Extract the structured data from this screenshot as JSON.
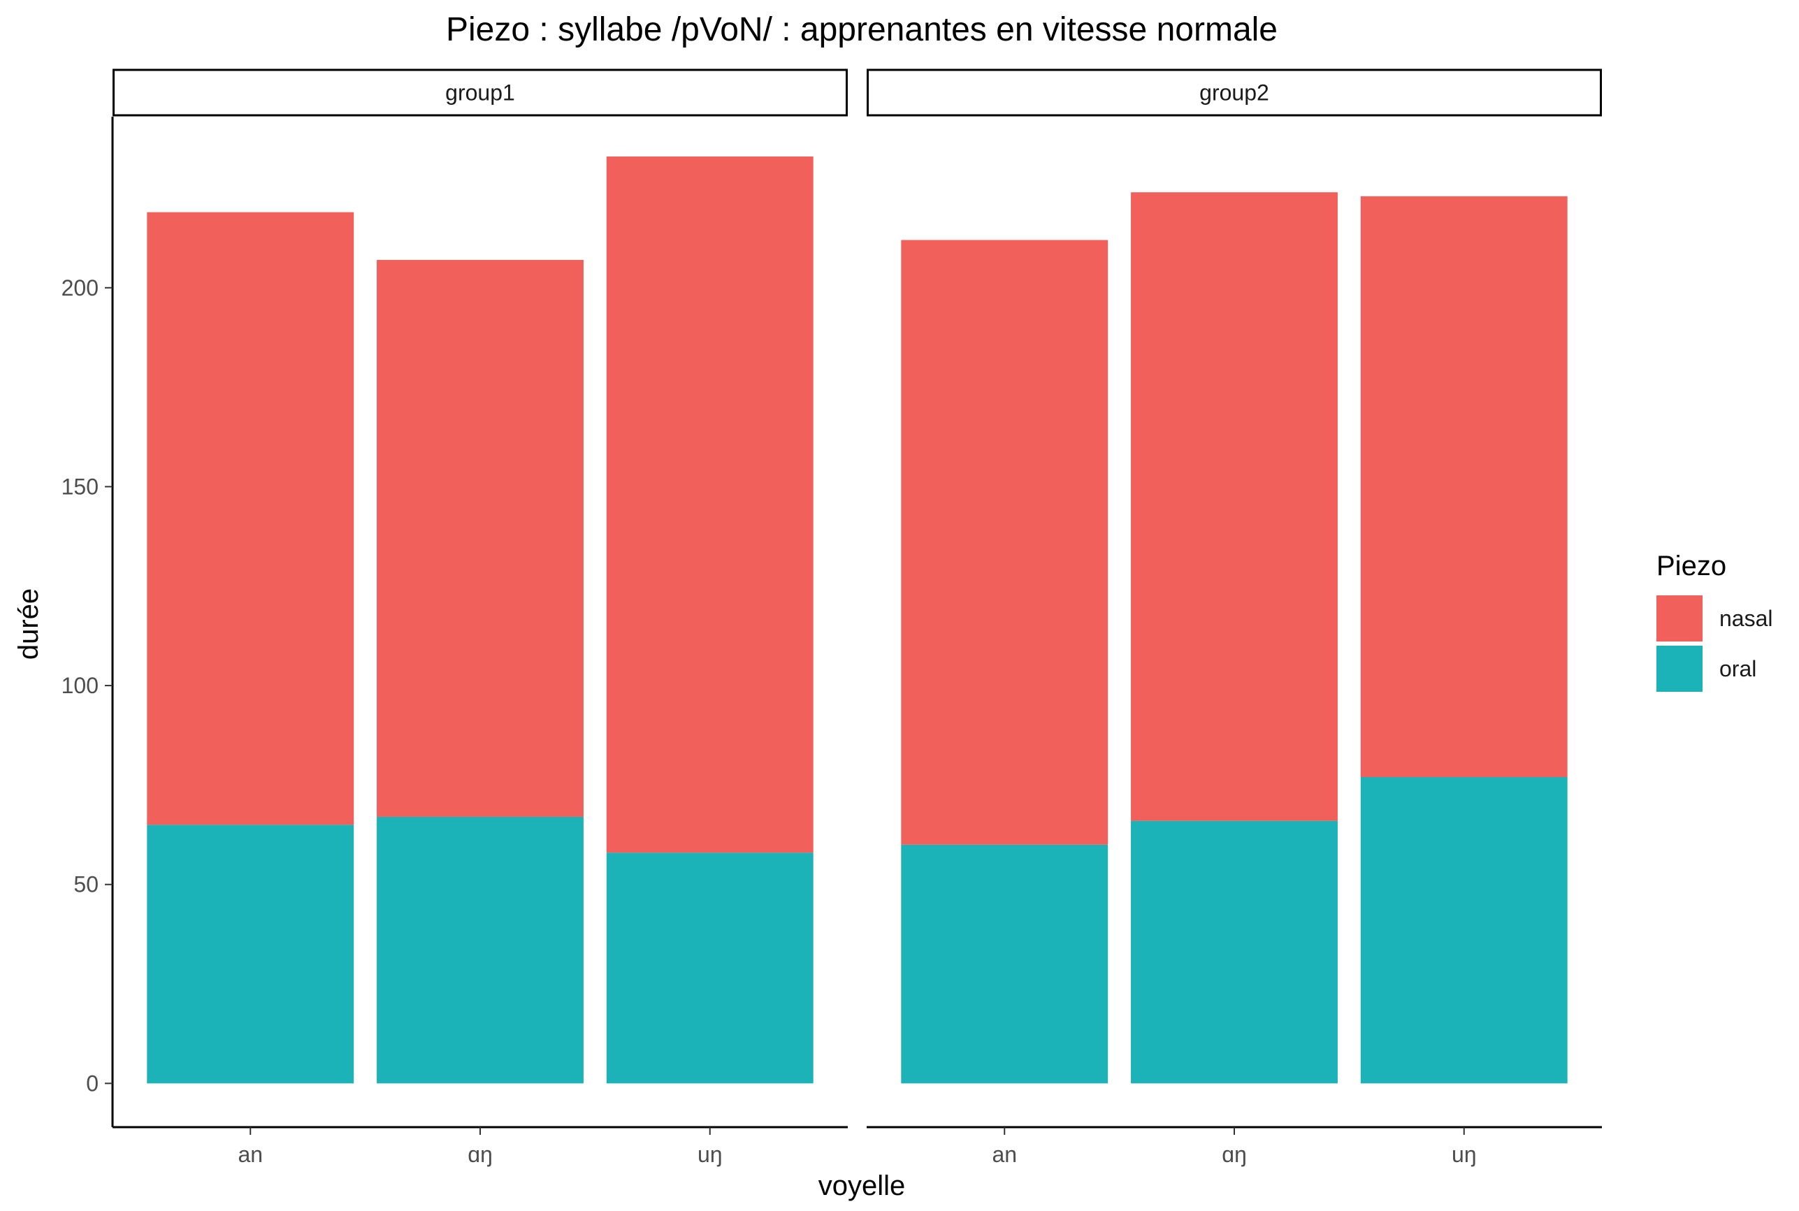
{
  "chart_data": {
    "type": "bar",
    "stacked": true,
    "title": "Piezo : syllabe /pVoN/ : apprenantes en vitesse normale",
    "xlabel": "voyelle",
    "ylabel": "durée",
    "ylim": [
      -11,
      243
    ],
    "yticks": [
      0,
      50,
      100,
      150,
      200
    ],
    "grid": false,
    "facets": [
      "group1",
      "group2"
    ],
    "categories": [
      "an",
      "ɑŋ",
      "uŋ"
    ],
    "legend": {
      "title": "Piezo",
      "position": "right",
      "entries": [
        {
          "name": "nasal",
          "color": "#F2605C"
        },
        {
          "name": "oral",
          "color": "#1BB3B7"
        }
      ]
    },
    "series": [
      {
        "name": "oral",
        "color": "#1BB3B7",
        "values": {
          "group1": [
            65,
            67,
            58
          ],
          "group2": [
            60,
            66,
            77
          ]
        }
      },
      {
        "name": "nasal",
        "color": "#F2605C",
        "values": {
          "group1": [
            154,
            140,
            175
          ],
          "group2": [
            152,
            158,
            146
          ]
        }
      }
    ]
  }
}
